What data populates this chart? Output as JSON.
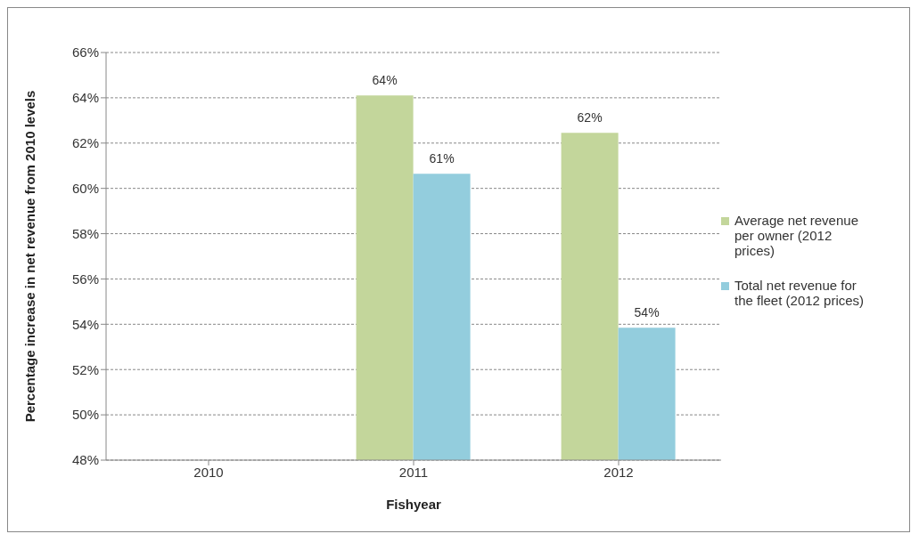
{
  "chart_data": {
    "type": "bar",
    "xlabel": "Fishyear",
    "ylabel": "Percentage increase in net revenue from 2010 levels",
    "categories": [
      "2010",
      "2011",
      "2012"
    ],
    "series": [
      {
        "name": "Average net revenue per owner (2012 prices)",
        "color": "#c3d69b",
        "values": [
          null,
          64.1,
          62.45
        ],
        "value_labels": [
          null,
          "64%",
          "62%"
        ]
      },
      {
        "name": "Total net revenue for the fleet (2012 prices)",
        "color": "#93cddd",
        "values": [
          null,
          60.65,
          53.85
        ],
        "value_labels": [
          null,
          "61%",
          "54%"
        ]
      }
    ],
    "ylim": [
      48,
      66
    ],
    "yticks": [
      {
        "value": 48,
        "label": "48%"
      },
      {
        "value": 50,
        "label": "50%"
      },
      {
        "value": 52,
        "label": "52%"
      },
      {
        "value": 54,
        "label": "54%"
      },
      {
        "value": 56,
        "label": "56%"
      },
      {
        "value": 58,
        "label": "58%"
      },
      {
        "value": 60,
        "label": "60%"
      },
      {
        "value": 62,
        "label": "62%"
      },
      {
        "value": 64,
        "label": "64%"
      },
      {
        "value": 66,
        "label": "66%"
      }
    ],
    "grid": "y",
    "legend": "right"
  }
}
